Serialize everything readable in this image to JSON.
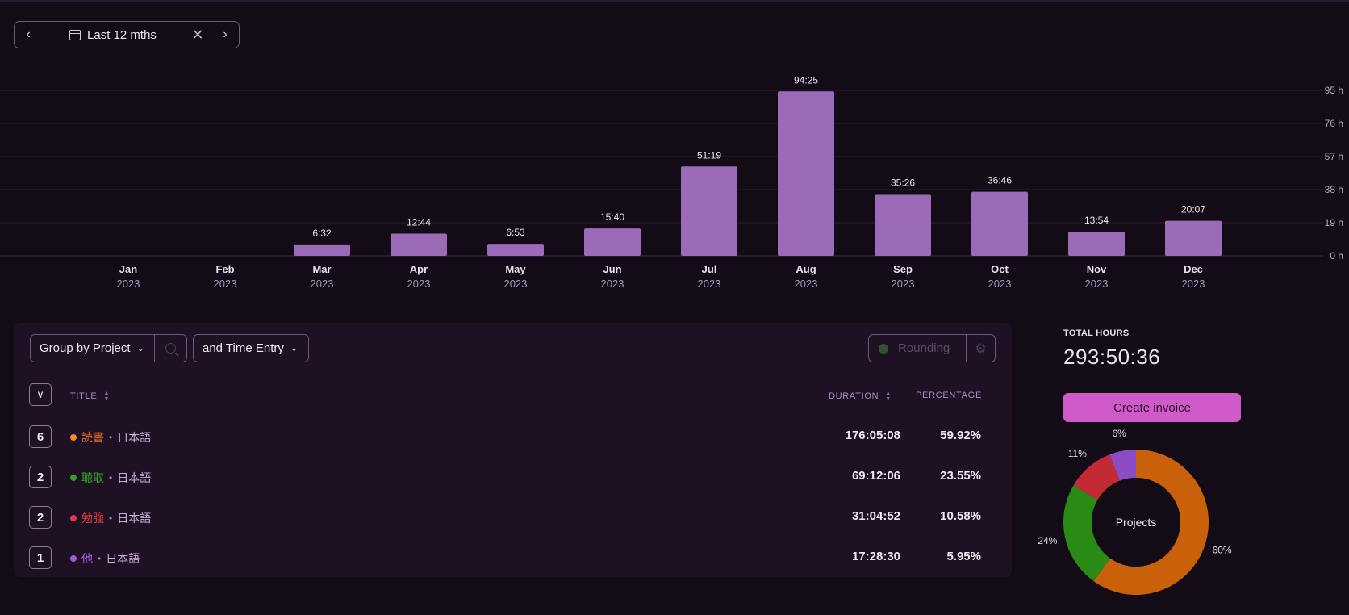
{
  "date_range": {
    "label": "Last 12 mths",
    "prev": "‹",
    "next": "›",
    "clear": "✕"
  },
  "chart_data": {
    "type": "bar",
    "categories": [
      "Jan",
      "Feb",
      "Mar",
      "Apr",
      "May",
      "Jun",
      "Jul",
      "Aug",
      "Sep",
      "Oct",
      "Nov",
      "Dec"
    ],
    "year": "2023",
    "values": [
      0,
      0,
      6.53,
      12.73,
      6.88,
      15.67,
      51.32,
      94.42,
      35.43,
      36.77,
      13.9,
      20.12
    ],
    "labels": [
      "",
      "",
      "6:32",
      "12:44",
      "6:53",
      "15:40",
      "51:19",
      "94:25",
      "35:26",
      "36:46",
      "13:54",
      "20:07"
    ],
    "ylim": [
      0,
      95
    ],
    "yticks": [
      "0 h",
      "19 h",
      "38 h",
      "57 h",
      "76 h",
      "95 h"
    ],
    "ytick_values": [
      0,
      19,
      38,
      57,
      76,
      95
    ],
    "bar_color": "#9b6bb7"
  },
  "controls": {
    "group_by": "Group by Project",
    "sub_group": "and Time Entry",
    "rounding": "Rounding"
  },
  "table": {
    "headers": {
      "title": "TITLE",
      "duration": "DURATION",
      "percentage": "PERCENTAGE"
    },
    "rows": [
      {
        "count": "6",
        "project": "読書",
        "color": "#f08a1c",
        "client": "日本語",
        "duration": "176:05:08",
        "percentage": "59.92%"
      },
      {
        "count": "2",
        "project": "聴取",
        "color": "#2fa324",
        "client": "日本語",
        "duration": "69:12:06",
        "percentage": "23.55%"
      },
      {
        "count": "2",
        "project": "勉強",
        "color": "#e0393f",
        "client": "日本語",
        "duration": "31:04:52",
        "percentage": "10.58%"
      },
      {
        "count": "1",
        "project": "他",
        "color": "#9d5ad6",
        "client": "日本語",
        "duration": "17:28:30",
        "percentage": "5.95%"
      }
    ]
  },
  "summary": {
    "total_label": "TOTAL HOURS",
    "total_value": "293:50:36",
    "invoice_button": "Create invoice"
  },
  "donut": {
    "center_label": "Projects",
    "slices": [
      {
        "label": "60%",
        "value": 59.92,
        "color": "#c9600a"
      },
      {
        "label": "24%",
        "value": 23.55,
        "color": "#2a8a16"
      },
      {
        "label": "11%",
        "value": 10.58,
        "color": "#c42a34"
      },
      {
        "label": "6%",
        "value": 5.95,
        "color": "#8b4cc6"
      }
    ]
  }
}
